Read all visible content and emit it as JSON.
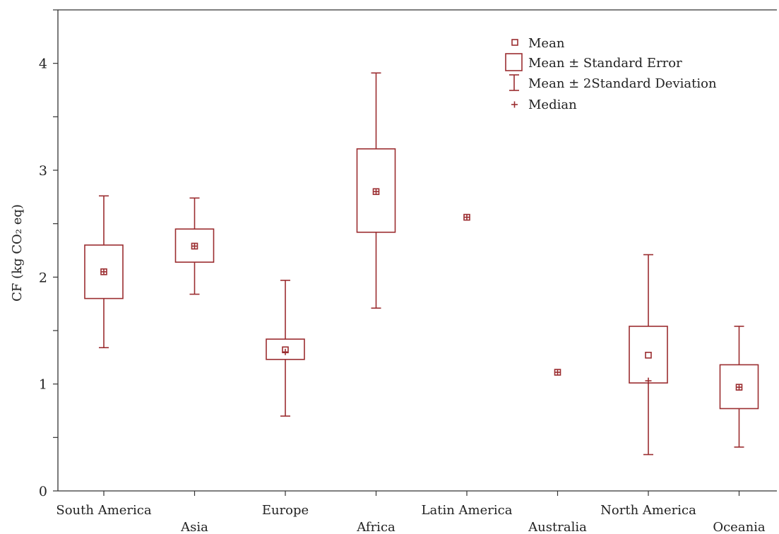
{
  "chart_data": {
    "type": "box",
    "ylabel": "CF (kg CO₂ eq)",
    "ylim": [
      0,
      4.5
    ],
    "yticks": [
      0,
      1,
      2,
      3,
      4
    ],
    "categories": [
      "South America",
      "Asia",
      "Europe",
      "Africa",
      "Latin America",
      "Australia",
      "North America",
      "Oceania"
    ],
    "mean": [
      2.05,
      2.29,
      1.32,
      2.8,
      2.56,
      1.11,
      1.27,
      0.97
    ],
    "se_low": [
      1.8,
      2.14,
      1.23,
      2.42,
      2.56,
      1.11,
      1.01,
      0.77
    ],
    "se_high": [
      2.3,
      2.45,
      1.42,
      3.2,
      2.56,
      1.11,
      1.54,
      1.18
    ],
    "sd_low": [
      1.34,
      1.84,
      0.7,
      1.71,
      2.56,
      1.11,
      0.34,
      0.41
    ],
    "sd_high": [
      2.76,
      2.74,
      1.97,
      3.91,
      2.56,
      1.11,
      2.21,
      1.54
    ],
    "median": [
      2.05,
      2.29,
      1.3,
      2.8,
      2.56,
      1.11,
      1.03,
      0.97
    ],
    "legend": {
      "placement": "top-right",
      "items": [
        "Mean",
        "Mean ± Standard Error",
        "Mean ± 2Standard Deviation",
        "Median"
      ]
    },
    "grid": false,
    "color": "#9b2d30"
  }
}
